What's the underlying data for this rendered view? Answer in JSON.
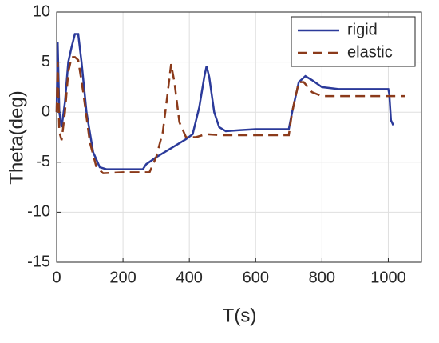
{
  "chart_data": {
    "type": "line",
    "x_label": "T(s)",
    "y_label": "Theta(deg)",
    "xlim": [
      0,
      1100
    ],
    "ylim": [
      -15,
      10
    ],
    "xticks": [
      0,
      200,
      400,
      600,
      800,
      1000
    ],
    "yticks": [
      -15,
      -10,
      -5,
      0,
      5,
      10
    ],
    "grid": true,
    "legend": "upper-right",
    "series": [
      {
        "name": "rigid",
        "color": "#2b3a9a",
        "dash": "solid",
        "x": [
          0,
          3,
          8,
          15,
          25,
          35,
          45,
          55,
          65,
          75,
          90,
          110,
          130,
          150,
          200,
          260,
          270,
          300,
          350,
          390,
          410,
          430,
          445,
          452,
          460,
          475,
          490,
          510,
          550,
          600,
          650,
          700,
          710,
          730,
          750,
          770,
          800,
          850,
          900,
          1000,
          1003,
          1008,
          1015
        ],
        "values": [
          0,
          7,
          0,
          -1.5,
          1,
          5,
          6.5,
          7.8,
          7.8,
          5,
          0,
          -4,
          -5.5,
          -5.7,
          -5.7,
          -5.7,
          -5.2,
          -4.5,
          -3.5,
          -2.7,
          -2.2,
          0.5,
          3.5,
          4.6,
          3.5,
          0,
          -1.5,
          -1.9,
          -1.8,
          -1.7,
          -1.7,
          -1.7,
          0,
          3,
          3.6,
          3.2,
          2.5,
          2.3,
          2.3,
          2.3,
          1.8,
          -0.8,
          -1.3
        ]
      },
      {
        "name": "elastic",
        "color": "#8b3a1a",
        "dash": "dashed",
        "x": [
          0,
          3,
          8,
          15,
          25,
          35,
          45,
          55,
          65,
          80,
          100,
          120,
          140,
          200,
          280,
          300,
          320,
          335,
          345,
          355,
          370,
          390,
          420,
          450,
          500,
          600,
          700,
          710,
          730,
          745,
          770,
          800,
          900,
          1000,
          1050
        ],
        "values": [
          0,
          5,
          -2,
          -2.8,
          0,
          4,
          5.5,
          5.5,
          5.2,
          2,
          -3,
          -5.5,
          -6.1,
          -6,
          -6,
          -4.5,
          -2,
          2,
          4.8,
          3,
          -1,
          -2.5,
          -2.5,
          -2.2,
          -2.3,
          -2.3,
          -2.3,
          0,
          3,
          3,
          2,
          1.6,
          1.6,
          1.6,
          1.6
        ]
      }
    ]
  }
}
